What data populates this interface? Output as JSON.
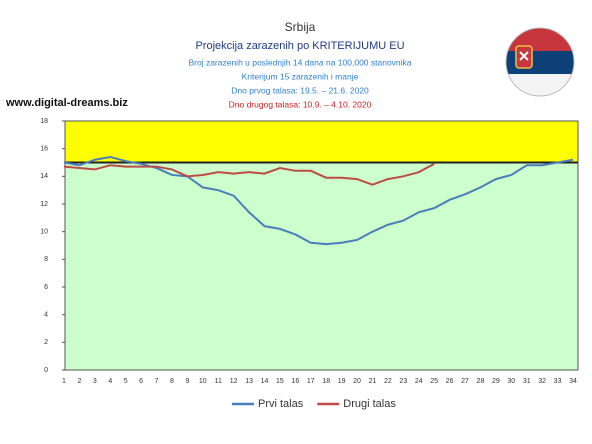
{
  "chart_data": {
    "type": "line",
    "title": "Srbija",
    "subtitle": "Projekcija zarazenih po KRITERIJUMU EU",
    "notes": [
      "Broj zarazenih u poslednjih 14 dana na 100,000 stanovnika",
      "Kriterijum 15 zarazenih i manje",
      "Dno prvog talasa: 19.5. – 21.6. 2020"
    ],
    "note_red": "Dno drugog talasa: 10.9. – 4.10. 2020",
    "watermark": "www.digital-dreams.biz",
    "categories": [
      1,
      2,
      3,
      4,
      5,
      6,
      7,
      8,
      9,
      10,
      11,
      12,
      13,
      14,
      15,
      16,
      17,
      18,
      19,
      20,
      21,
      22,
      23,
      24,
      25,
      26,
      27,
      28,
      29,
      30,
      31,
      32,
      33,
      34
    ],
    "series": [
      {
        "name": "Prvi talas",
        "color": "#4a7ebb",
        "values": [
          15.0,
          14.8,
          15.2,
          15.4,
          15.1,
          14.9,
          14.6,
          14.1,
          14.0,
          13.2,
          13.0,
          12.6,
          11.4,
          10.4,
          10.2,
          9.8,
          9.2,
          9.1,
          9.2,
          9.4,
          10.0,
          10.5,
          10.8,
          11.4,
          11.7,
          12.3,
          12.7,
          13.2,
          13.8,
          14.1,
          14.8,
          14.8,
          15.0,
          15.2
        ]
      },
      {
        "name": "Drugi talas",
        "color": "#be4b48",
        "values": [
          14.7,
          14.6,
          14.5,
          14.8,
          14.7,
          14.7,
          14.7,
          14.5,
          14.0,
          14.1,
          14.3,
          14.2,
          14.3,
          14.2,
          14.6,
          14.4,
          14.4,
          13.9,
          13.9,
          13.8,
          13.4,
          13.8,
          14.0,
          14.3,
          14.9,
          null,
          null,
          null,
          null,
          null,
          null,
          null,
          null,
          null
        ]
      }
    ],
    "ylim": [
      0,
      18
    ],
    "yticks": [
      0,
      2,
      4,
      6,
      8,
      10,
      12,
      14,
      16,
      18
    ],
    "threshold": 15,
    "above_color": "#ffff00",
    "below_color": "#ccffcc",
    "legend": "bottom"
  }
}
